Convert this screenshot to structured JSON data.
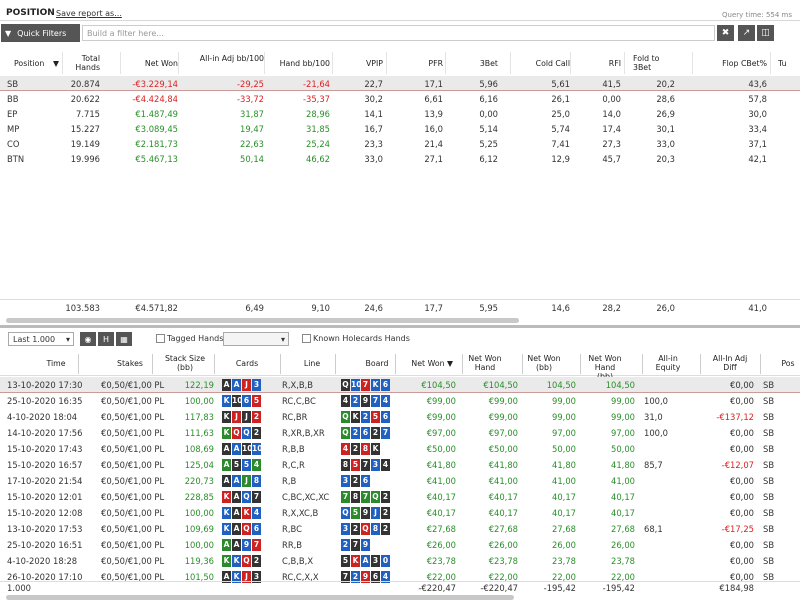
{
  "header": {
    "title": "POSITION",
    "save": "Save report as...",
    "query_time": "Query time: 554 ms"
  },
  "filter": {
    "quick_filters": "Quick Filters",
    "placeholder": "Build a filter here..."
  },
  "pos_table": {
    "columns": [
      "Position",
      "Total Hands",
      "Net Won",
      "All-in Adj bb/100",
      "Hand bb/100",
      "VPIP",
      "PFR",
      "3Bet",
      "Cold Call",
      "RFI",
      "Fold to 3Bet",
      "Flop CBet%",
      "Tu"
    ],
    "rows": [
      {
        "pos": "SB",
        "hands": "20.874",
        "net": "-€3.229,14",
        "allin": "-29,25",
        "hand": "-21,64",
        "vpip": "22,7",
        "pfr": "17,1",
        "bet3": "5,96",
        "cc": "5,61",
        "rfi": "41,5",
        "f3": "20,2",
        "cbet": "43,6",
        "neg": true
      },
      {
        "pos": "BB",
        "hands": "20.622",
        "net": "-€4.424,84",
        "allin": "-33,72",
        "hand": "-35,37",
        "vpip": "30,2",
        "pfr": "6,61",
        "bet3": "6,16",
        "cc": "26,1",
        "rfi": "0,00",
        "f3": "28,6",
        "cbet": "57,8",
        "neg": true
      },
      {
        "pos": "EP",
        "hands": "7.715",
        "net": "€1.487,49",
        "allin": "31,87",
        "hand": "28,96",
        "vpip": "14,1",
        "pfr": "13,9",
        "bet3": "0,00",
        "cc": "25,0",
        "rfi": "14,0",
        "f3": "26,9",
        "cbet": "30,0",
        "neg": false
      },
      {
        "pos": "MP",
        "hands": "15.227",
        "net": "€3.089,45",
        "allin": "19,47",
        "hand": "31,85",
        "vpip": "16,7",
        "pfr": "16,0",
        "bet3": "5,14",
        "cc": "5,74",
        "rfi": "17,4",
        "f3": "30,1",
        "cbet": "33,4",
        "neg": false
      },
      {
        "pos": "CO",
        "hands": "19.149",
        "net": "€2.181,73",
        "allin": "22,63",
        "hand": "25,24",
        "vpip": "23,3",
        "pfr": "21,4",
        "bet3": "5,25",
        "cc": "7,41",
        "rfi": "27,3",
        "f3": "33,0",
        "cbet": "37,1",
        "neg": false
      },
      {
        "pos": "BTN",
        "hands": "19.996",
        "net": "€5.467,13",
        "allin": "50,14",
        "hand": "46,62",
        "vpip": "33,0",
        "pfr": "27,1",
        "bet3": "6,12",
        "cc": "12,9",
        "rfi": "45,7",
        "f3": "20,3",
        "cbet": "42,1",
        "neg": false
      }
    ],
    "totals": {
      "hands": "103.583",
      "net": "€4.571,82",
      "allin": "6,49",
      "hand": "9,10",
      "vpip": "24,6",
      "pfr": "17,7",
      "bet3": "5,95",
      "cc": "14,6",
      "rfi": "28,2",
      "f3": "26,0",
      "cbet": "41,0"
    }
  },
  "toolbar2": {
    "last": "Last 1.000",
    "tagged": "Tagged Hands",
    "known": "Known Holecards Hands",
    "h": "H"
  },
  "hands_table": {
    "columns": [
      "Time",
      "Stakes",
      "Stack Size (bb)",
      "Cards",
      "Line",
      "Board",
      "Net Won",
      "Net Won Hand",
      "Net Won (bb)",
      "Net Won Hand (bb)",
      "All-in Equity",
      "All-In Adj Diff",
      "Pos"
    ],
    "rows": [
      {
        "time": "13-10-2020 17:30",
        "stakes": "€0,50/€1,00 PL",
        "stack": "122,19",
        "cards": [
          [
            "A",
            "s"
          ],
          [
            "A",
            "d"
          ],
          [
            "J",
            "h"
          ],
          [
            "3",
            "d"
          ]
        ],
        "line": "R,X,B,B",
        "board": [
          [
            "Q",
            "s"
          ],
          [
            "10",
            "d"
          ],
          [
            "7",
            "h"
          ],
          [
            "K",
            "d"
          ],
          [
            "6",
            "d"
          ]
        ],
        "net": "€104,50",
        "nwh": "€104,50",
        "nbb": "104,50",
        "nhbb": "104,50",
        "eq": "",
        "diff": "€0,00",
        "pos": "SB"
      },
      {
        "time": "25-10-2020 16:35",
        "stakes": "€0,50/€1,00 PL",
        "stack": "100,00",
        "cards": [
          [
            "K",
            "d"
          ],
          [
            "10",
            "s"
          ],
          [
            "6",
            "d"
          ],
          [
            "5",
            "h"
          ]
        ],
        "line": "RC,C,BC",
        "board": [
          [
            "4",
            "s"
          ],
          [
            "2",
            "d"
          ],
          [
            "9",
            "s"
          ],
          [
            "7",
            "d"
          ],
          [
            "4",
            "d"
          ]
        ],
        "net": "€99,00",
        "nwh": "€99,00",
        "nbb": "99,00",
        "nhbb": "99,00",
        "eq": "100,0",
        "diff": "€0,00",
        "pos": "SB"
      },
      {
        "time": "4-10-2020 18:04",
        "stakes": "€0,50/€1,00 PL",
        "stack": "117,83",
        "cards": [
          [
            "K",
            "s"
          ],
          [
            "J",
            "h"
          ],
          [
            "J",
            "s"
          ],
          [
            "2",
            "h"
          ]
        ],
        "line": "RC,BR",
        "board": [
          [
            "Q",
            "cl"
          ],
          [
            "K",
            "s"
          ],
          [
            "2",
            "d"
          ],
          [
            "5",
            "h"
          ],
          [
            "6",
            "d"
          ]
        ],
        "net": "€99,00",
        "nwh": "€99,00",
        "nbb": "99,00",
        "nhbb": "99,00",
        "eq": "31,0",
        "diff": "-€137,12",
        "pos": "SB"
      },
      {
        "time": "14-10-2020 17:56",
        "stakes": "€0,50/€1,00 PL",
        "stack": "111,63",
        "cards": [
          [
            "K",
            "cl"
          ],
          [
            "Q",
            "h"
          ],
          [
            "Q",
            "d"
          ],
          [
            "2",
            "s"
          ]
        ],
        "line": "R,XR,B,XR",
        "board": [
          [
            "Q",
            "cl"
          ],
          [
            "2",
            "d"
          ],
          [
            "6",
            "d"
          ],
          [
            "2",
            "s"
          ],
          [
            "7",
            "d"
          ]
        ],
        "net": "€97,00",
        "nwh": "€97,00",
        "nbb": "97,00",
        "nhbb": "97,00",
        "eq": "100,0",
        "diff": "€0,00",
        "pos": "SB"
      },
      {
        "time": "15-10-2020 17:43",
        "stakes": "€0,50/€1,00 PL",
        "stack": "108,69",
        "cards": [
          [
            "A",
            "s"
          ],
          [
            "A",
            "d"
          ],
          [
            "10",
            "s"
          ],
          [
            "10",
            "d"
          ]
        ],
        "line": "R,B,B",
        "board": [
          [
            "4",
            "h"
          ],
          [
            "2",
            "s"
          ],
          [
            "8",
            "h"
          ],
          [
            "K",
            "s"
          ]
        ],
        "net": "€50,00",
        "nwh": "€50,00",
        "nbb": "50,00",
        "nhbb": "50,00",
        "eq": "",
        "diff": "€0,00",
        "pos": "SB"
      },
      {
        "time": "15-10-2020 16:57",
        "stakes": "€0,50/€1,00 PL",
        "stack": "125,04",
        "cards": [
          [
            "A",
            "cl"
          ],
          [
            "5",
            "s"
          ],
          [
            "5",
            "d"
          ],
          [
            "4",
            "cl"
          ]
        ],
        "line": "R,C,R",
        "board": [
          [
            "8",
            "s"
          ],
          [
            "5",
            "h"
          ],
          [
            "7",
            "s"
          ],
          [
            "3",
            "d"
          ],
          [
            "4",
            "s"
          ]
        ],
        "net": "€41,80",
        "nwh": "€41,80",
        "nbb": "41,80",
        "nhbb": "41,80",
        "eq": "85,7",
        "diff": "-€12,07",
        "pos": "SB"
      },
      {
        "time": "17-10-2020 21:54",
        "stakes": "€0,50/€1,00 PL",
        "stack": "220,73",
        "cards": [
          [
            "A",
            "s"
          ],
          [
            "A",
            "d"
          ],
          [
            "J",
            "cl"
          ],
          [
            "8",
            "d"
          ]
        ],
        "line": "R,B",
        "board": [
          [
            "3",
            "d"
          ],
          [
            "2",
            "s"
          ],
          [
            "6",
            "d"
          ]
        ],
        "net": "€41,00",
        "nwh": "€41,00",
        "nbb": "41,00",
        "nhbb": "41,00",
        "eq": "",
        "diff": "€0,00",
        "pos": "SB"
      },
      {
        "time": "15-10-2020 12:01",
        "stakes": "€0,50/€1,00 PL",
        "stack": "228,85",
        "cards": [
          [
            "K",
            "h"
          ],
          [
            "A",
            "s"
          ],
          [
            "Q",
            "d"
          ],
          [
            "7",
            "s"
          ]
        ],
        "line": "C,BC,XC,XC",
        "board": [
          [
            "7",
            "cl"
          ],
          [
            "8",
            "s"
          ],
          [
            "7",
            "cl"
          ],
          [
            "Q",
            "cl"
          ],
          [
            "2",
            "s"
          ]
        ],
        "net": "€40,17",
        "nwh": "€40,17",
        "nbb": "40,17",
        "nhbb": "40,17",
        "eq": "",
        "diff": "€0,00",
        "pos": "SB"
      },
      {
        "time": "15-10-2020 12:08",
        "stakes": "€0,50/€1,00 PL",
        "stack": "100,00",
        "cards": [
          [
            "K",
            "d"
          ],
          [
            "A",
            "s"
          ],
          [
            "K",
            "h"
          ],
          [
            "4",
            "d"
          ]
        ],
        "line": "R,X,XC,B",
        "board": [
          [
            "Q",
            "d"
          ],
          [
            "5",
            "cl"
          ],
          [
            "9",
            "s"
          ],
          [
            "J",
            "d"
          ],
          [
            "2",
            "s"
          ]
        ],
        "net": "€40,17",
        "nwh": "€40,17",
        "nbb": "40,17",
        "nhbb": "40,17",
        "eq": "",
        "diff": "€0,00",
        "pos": "SB"
      },
      {
        "time": "13-10-2020 17:53",
        "stakes": "€0,50/€1,00 PL",
        "stack": "109,69",
        "cards": [
          [
            "K",
            "d"
          ],
          [
            "A",
            "s"
          ],
          [
            "Q",
            "h"
          ],
          [
            "6",
            "d"
          ]
        ],
        "line": "R,BC",
        "board": [
          [
            "3",
            "d"
          ],
          [
            "2",
            "s"
          ],
          [
            "Q",
            "h"
          ],
          [
            "8",
            "d"
          ],
          [
            "2",
            "s"
          ]
        ],
        "net": "€27,68",
        "nwh": "€27,68",
        "nbb": "27,68",
        "nhbb": "27,68",
        "eq": "68,1",
        "diff": "-€17,25",
        "pos": "SB"
      },
      {
        "time": "25-10-2020 16:51",
        "stakes": "€0,50/€1,00 PL",
        "stack": "100,00",
        "cards": [
          [
            "A",
            "cl"
          ],
          [
            "A",
            "s"
          ],
          [
            "9",
            "d"
          ],
          [
            "7",
            "h"
          ]
        ],
        "line": "RR,B",
        "board": [
          [
            "2",
            "d"
          ],
          [
            "7",
            "s"
          ],
          [
            "9",
            "d"
          ]
        ],
        "net": "€26,00",
        "nwh": "€26,00",
        "nbb": "26,00",
        "nhbb": "26,00",
        "eq": "",
        "diff": "€0,00",
        "pos": "SB"
      },
      {
        "time": "4-10-2020 18:28",
        "stakes": "€0,50/€1,00 PL",
        "stack": "119,36",
        "cards": [
          [
            "K",
            "cl"
          ],
          [
            "K",
            "d"
          ],
          [
            "Q",
            "h"
          ],
          [
            "2",
            "s"
          ]
        ],
        "line": "C,B,B,X",
        "board": [
          [
            "5",
            "s"
          ],
          [
            "K",
            "h"
          ],
          [
            "A",
            "d"
          ],
          [
            "3",
            "s"
          ],
          [
            "0",
            "d"
          ]
        ],
        "net": "€23,78",
        "nwh": "€23,78",
        "nbb": "23,78",
        "nhbb": "23,78",
        "eq": "",
        "diff": "€0,00",
        "pos": "SB"
      },
      {
        "time": "26-10-2020 17:10",
        "stakes": "€0,50/€1,00 PL",
        "stack": "101,50",
        "cards": [
          [
            "A",
            "s"
          ],
          [
            "K",
            "d"
          ],
          [
            "J",
            "h"
          ],
          [
            "3",
            "s"
          ]
        ],
        "line": "RC,C,X,X",
        "board": [
          [
            "7",
            "s"
          ],
          [
            "2",
            "d"
          ],
          [
            "9",
            "h"
          ],
          [
            "6",
            "s"
          ],
          [
            "4",
            "d"
          ]
        ],
        "net": "€22,00",
        "nwh": "€22,00",
        "nbb": "22,00",
        "nhbb": "22,00",
        "eq": "",
        "diff": "€0,00",
        "pos": "SB"
      }
    ],
    "totals": {
      "count": "1.000",
      "net": "-€220,47",
      "nwh": "-€220,47",
      "nbb": "-195,42",
      "nhbb": "-195,42",
      "diff": "€184,98"
    }
  }
}
